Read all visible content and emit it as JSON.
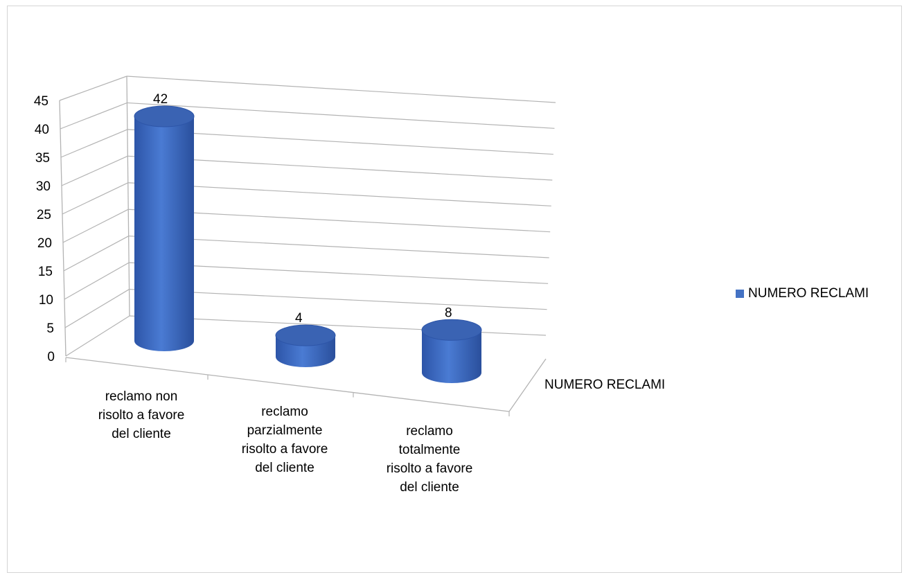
{
  "chart_data": {
    "type": "bar",
    "style": "3d-cylinder",
    "categories": [
      "reclamo non risolto a favore del cliente",
      "reclamo parzialmente risolto a favore del cliente",
      "reclamo totalmente risolto a favore del cliente"
    ],
    "category_lines": [
      [
        "reclamo non",
        "risolto a favore",
        "del cliente"
      ],
      [
        "reclamo",
        "parzialmente",
        "risolto a favore",
        "del cliente"
      ],
      [
        "reclamo",
        "totalmente",
        "risolto a favore",
        "del cliente"
      ]
    ],
    "series": [
      {
        "name": "NUMERO RECLAMI",
        "values": [
          42,
          4,
          8
        ]
      }
    ],
    "depth_label": "NUMERO RECLAMI",
    "yticks": [
      "0",
      "5",
      "10",
      "15",
      "20",
      "25",
      "30",
      "35",
      "40",
      "45"
    ],
    "ylim": [
      0,
      45
    ],
    "grid": true,
    "legend_position": "right",
    "colors": {
      "bar": "#4472c4",
      "bar_dark": "#2f55a0",
      "bar_top": "#3a63b3",
      "grid": "#b3b3b3"
    }
  },
  "legend": {
    "label": "NUMERO RECLAMI"
  }
}
